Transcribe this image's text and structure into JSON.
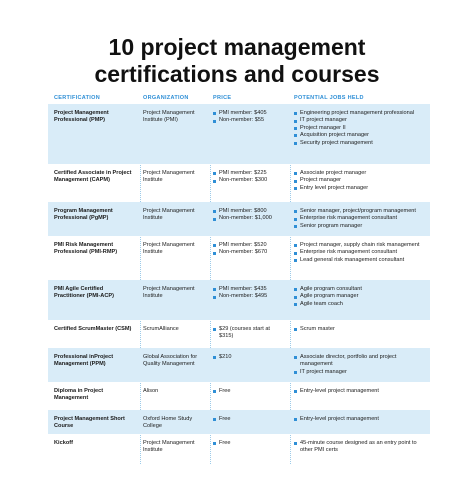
{
  "title_line1": "10 project management",
  "title_line2": "certifications and courses",
  "headers": {
    "certification": "CERTIFICATION",
    "organization": "ORGANIZATION",
    "price": "PRICE",
    "roles": "POTENTIAL JOBS HELD"
  },
  "rows": [
    {
      "certification": "Project Management Professional (PMP)",
      "organization": "Project Management Institute (PMI)",
      "price": [
        "PMI member: $405",
        "Non-member: $55"
      ],
      "roles": [
        "Engineering project management professional",
        "IT project manager",
        "Project manager II",
        "Acquisition project manager",
        "Security project management"
      ]
    },
    {
      "certification": "Certified Associate in Project Management (CAPM)",
      "organization": "Project Management Institute",
      "price": [
        "PMI member: $225",
        "Non-member: $300"
      ],
      "roles": [
        "Associate project manager",
        "Project manager",
        "Entry level project manager"
      ]
    },
    {
      "certification": "Program Management Professional (PgMP)",
      "organization": "Project Management Institute",
      "price": [
        "PMI member: $800",
        "Non-member: $1,000"
      ],
      "roles": [
        "Senior manager, project/program management",
        "Enterprise risk management consultant",
        "Senior program manager"
      ]
    },
    {
      "certification": "PMI Risk Management Professional (PMI-RMP)",
      "organization": "Project Management Institute",
      "price": [
        "PMI member: $520",
        "Non-member: $670"
      ],
      "roles": [
        "Project manager, supply chain risk management",
        "Enterprise risk management consultant",
        "Lead general risk management consultant"
      ]
    },
    {
      "certification": "PMI Agile Certified Practitioner (PMI-ACP)",
      "organization": "Project Management Institute",
      "price": [
        "PMI member: $435",
        "Non-member: $495"
      ],
      "roles": [
        "Agile program consultant",
        "Agile program manager",
        "Agile team coach"
      ]
    },
    {
      "certification": "Certified ScrumMaster (CSM)",
      "organization": "ScrumAlliance",
      "price": [
        "$29 (courses start at $315)"
      ],
      "roles": [
        "Scrum master"
      ]
    },
    {
      "certification": "Professional inProject Management (PPM)",
      "organization": "Global Association for Quality Management",
      "price": [
        "$210"
      ],
      "roles": [
        "Associate director, portfolio and project management",
        "IT project manager"
      ]
    },
    {
      "certification": "Diploma in Project Management",
      "organization": "Alison",
      "price": [
        "Free"
      ],
      "roles": [
        "Entry-level project management"
      ]
    },
    {
      "certification": "Project Management Short Course",
      "organization": "Oxford Home Study College",
      "price": [
        "Free"
      ],
      "roles": [
        "Entry-level project management"
      ]
    },
    {
      "certification": "Kickoff",
      "organization": "Project Management Institute",
      "price": [
        "Free"
      ],
      "roles": [
        "45-minute course designed as an entry point to other PMI certs"
      ]
    }
  ],
  "colors": {
    "accent": "#2f8fd6",
    "row_shade": "#d9ecf8"
  }
}
